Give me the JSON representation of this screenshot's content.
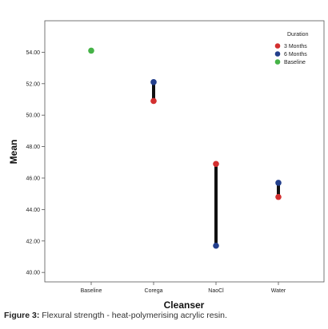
{
  "chart_data": {
    "type": "scatter",
    "xlabel": "Cleanser",
    "ylabel": "Mean",
    "categories": [
      "Baseline",
      "Corega",
      "NaoCl",
      "Water"
    ],
    "ylim": [
      39.4,
      56.0
    ],
    "y_ticks": [
      "40.00",
      "42.00",
      "44.00",
      "46.00",
      "48.00",
      "50.00",
      "52.00",
      "54.00"
    ],
    "legend": {
      "title": "Duration",
      "position": "top-right",
      "entries": [
        {
          "label": "3 Months",
          "color": "#d32f2f"
        },
        {
          "label": "6 Months",
          "color": "#233f8c"
        },
        {
          "label": "Baseline",
          "color": "#45b347"
        }
      ]
    },
    "series": [
      {
        "name": "3 Months",
        "color": "#d32f2f",
        "values": [
          null,
          50.9,
          46.9,
          44.8
        ]
      },
      {
        "name": "6 Months",
        "color": "#233f8c",
        "values": [
          null,
          52.1,
          41.7,
          45.7
        ]
      },
      {
        "name": "Baseline",
        "color": "#45b347",
        "values": [
          54.1,
          null,
          null,
          null
        ]
      }
    ],
    "range_lines": true,
    "grid": false
  },
  "caption": {
    "label": "Figure 3:",
    "text": " Flexural strength - heat-polymerising acrylic resin."
  }
}
